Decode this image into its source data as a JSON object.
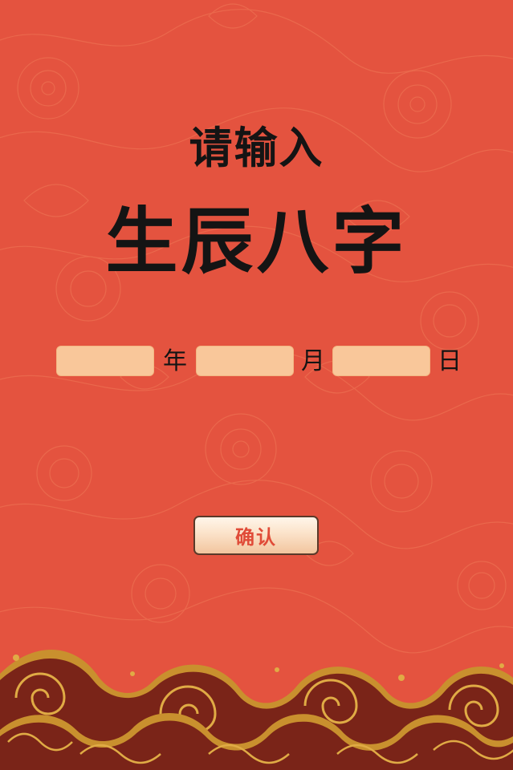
{
  "title": {
    "line1": "请输入",
    "line2": "生辰八字"
  },
  "form": {
    "year_label": "年",
    "month_label": "月",
    "day_label": "日",
    "year_value": "",
    "month_value": "",
    "day_value": ""
  },
  "confirm": {
    "label": "确认"
  },
  "colors": {
    "background": "#e4533f",
    "input_fill": "#f9c79a",
    "wave_gold": "#c9902e",
    "wave_dark": "#7a2418"
  },
  "icons": {
    "background_pattern": "peony-line-pattern",
    "footer": "auspicious-wave-pattern"
  }
}
